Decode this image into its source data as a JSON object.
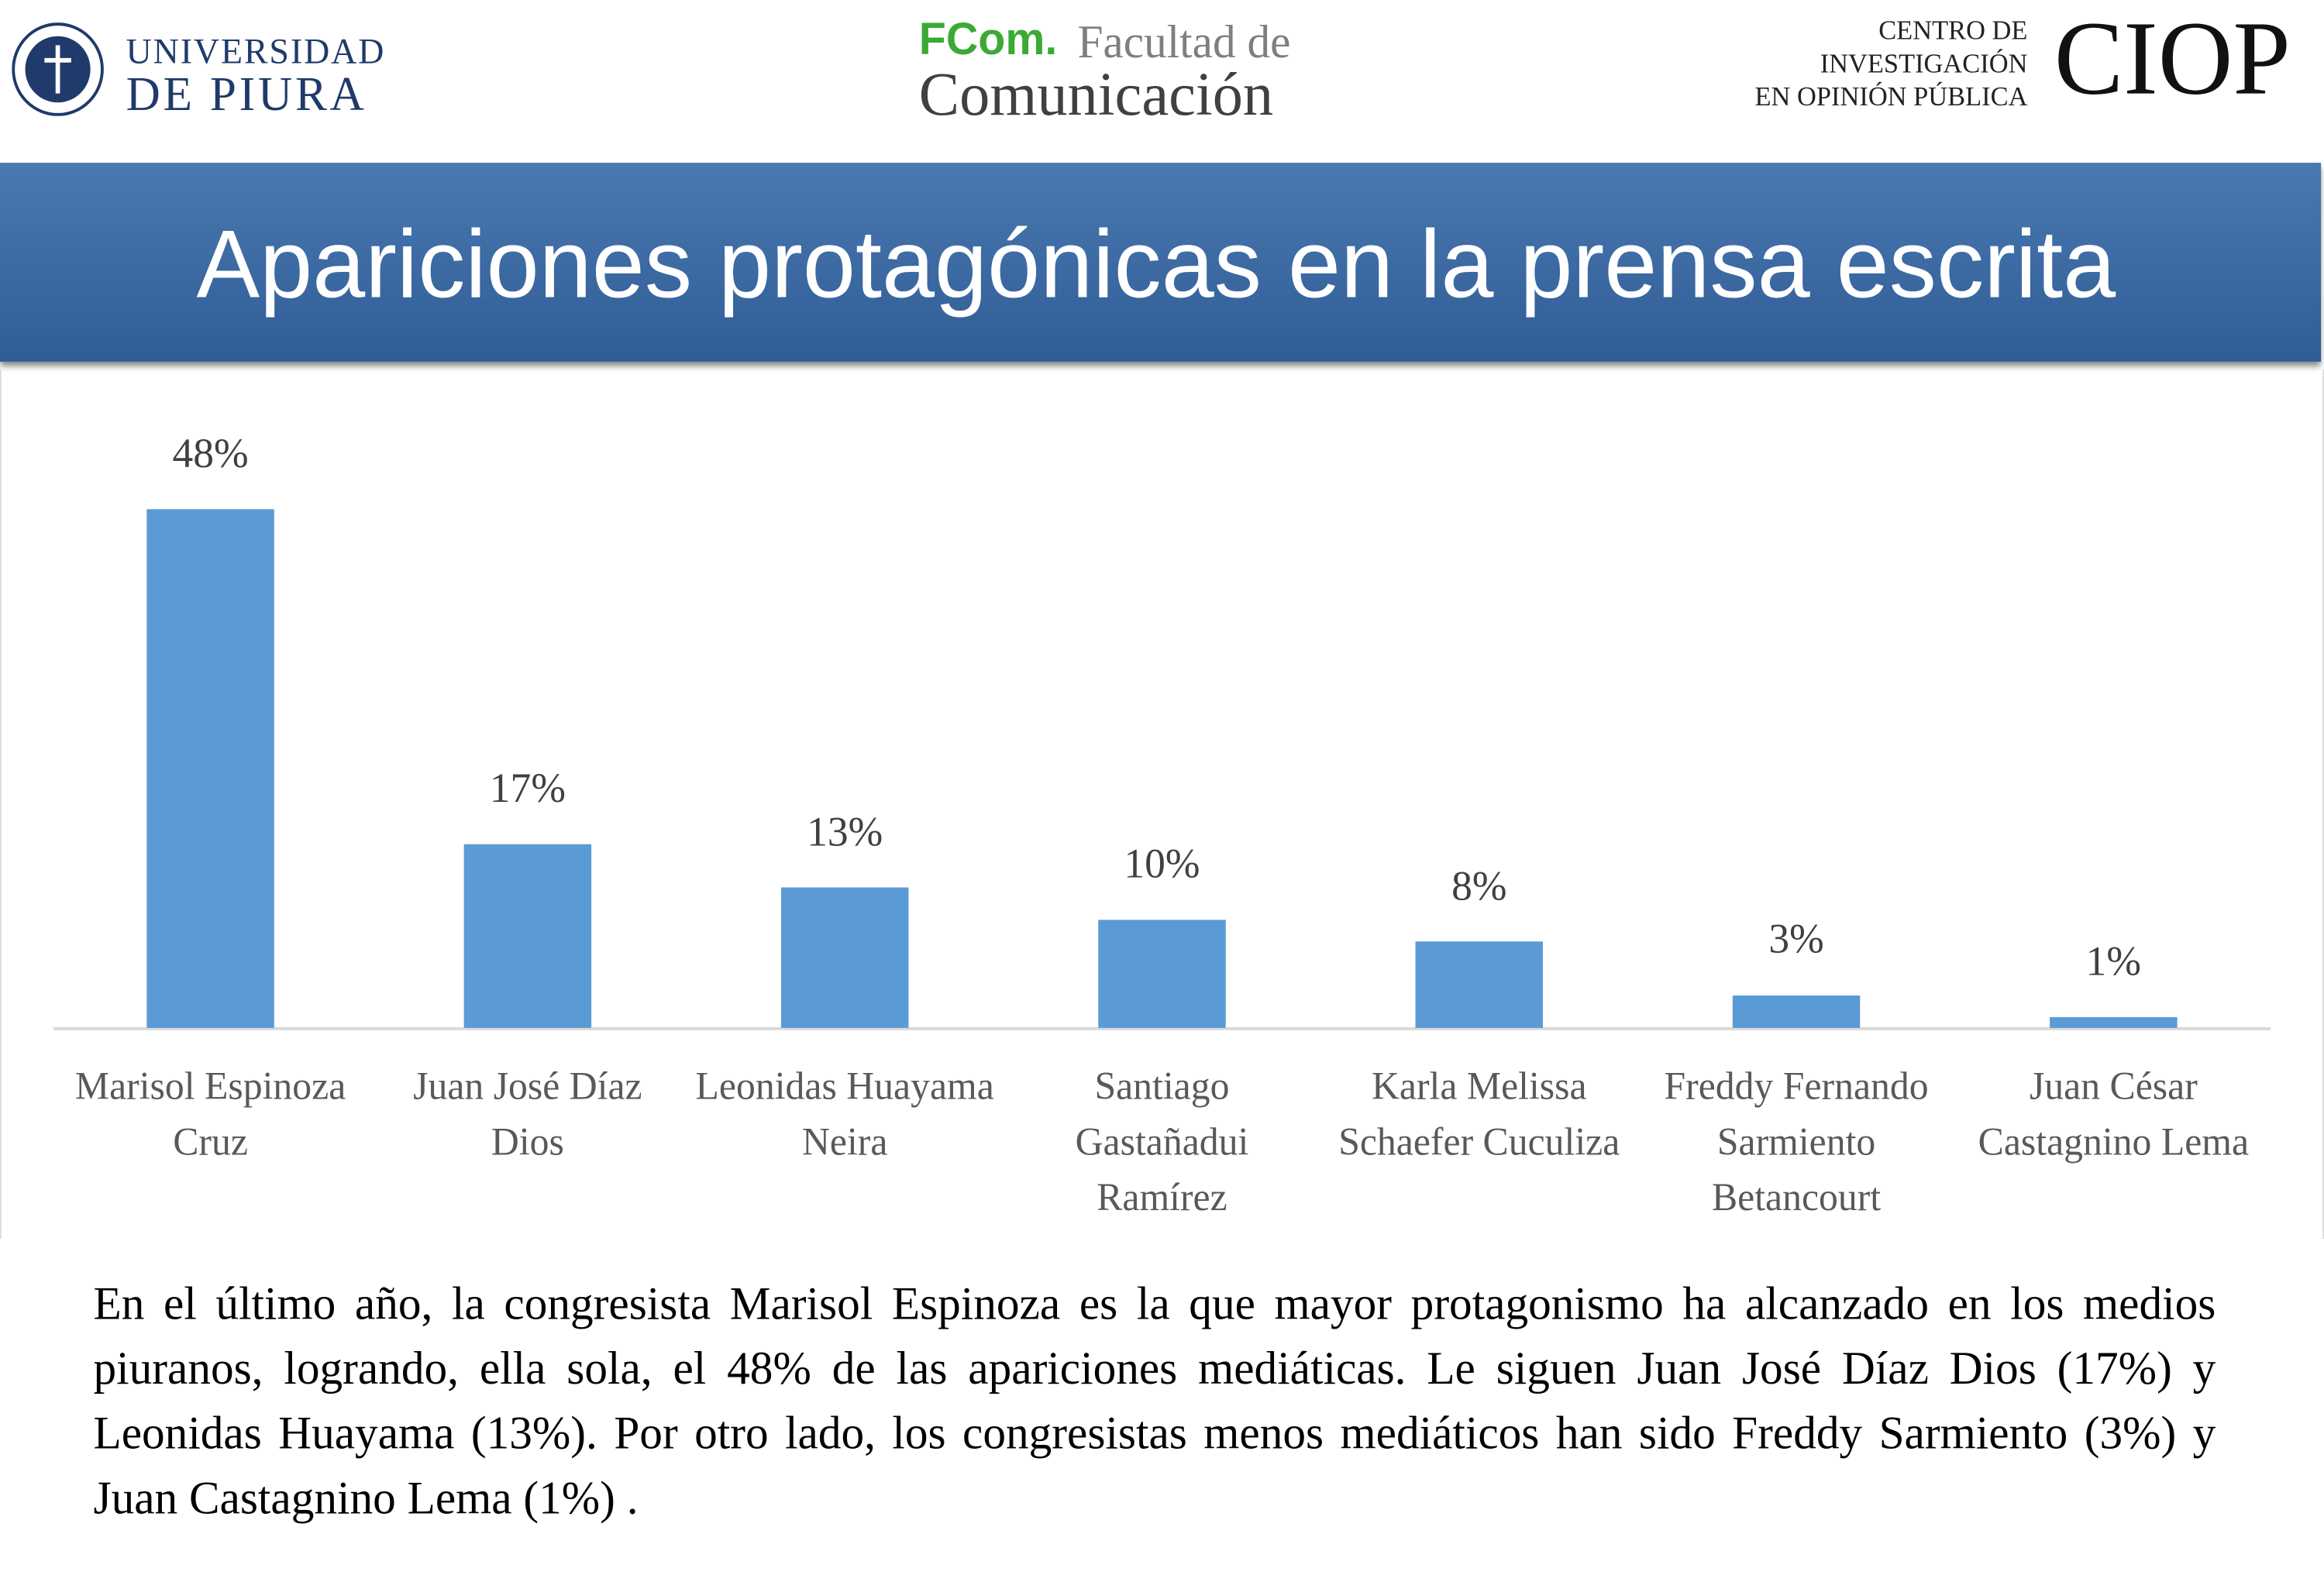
{
  "header": {
    "university_line1": "UNIVERSIDAD",
    "university_line2": "DE PIURA",
    "faculty_brand": "FCom.",
    "faculty_line1": "Facultad de",
    "faculty_line2": "Comunicación",
    "center_line1": "CENTRO DE",
    "center_line2": "INVESTIGACIÓN",
    "center_line3": "EN OPINIÓN PÚBLICA",
    "center_brand": "CIOP"
  },
  "chart_data": {
    "type": "bar",
    "title": "Apariciones protagónicas en la prensa escrita",
    "categories": [
      "Marisol Espinoza Cruz",
      "Juan José Díaz Dios",
      "Leonidas Huayama Neira",
      "Santiago Gastañadui Ramírez",
      "Karla Melissa Schaefer Cuculiza",
      "Freddy Fernando Sarmiento Betancourt",
      "Juan César Castagnino Lema"
    ],
    "values": [
      48,
      17,
      13,
      10,
      8,
      3,
      1
    ],
    "value_labels": [
      "48%",
      "17%",
      "13%",
      "10%",
      "8%",
      "3%",
      "1%"
    ],
    "color": "#5b9bd5"
  },
  "body": {
    "paragraph": "En el último año, la congresista Marisol Espinoza es la que mayor protagonismo ha alcanzado en los medios piuranos, logrando, ella sola, el 48% de las apariciones mediáticas. Le siguen Juan José Díaz Dios (17%) y Leonidas Huayama (13%). Por otro lado, los congresistas menos mediáticos han sido Freddy Sarmiento (3%) y Juan Castagnino Lema (1%) ."
  }
}
